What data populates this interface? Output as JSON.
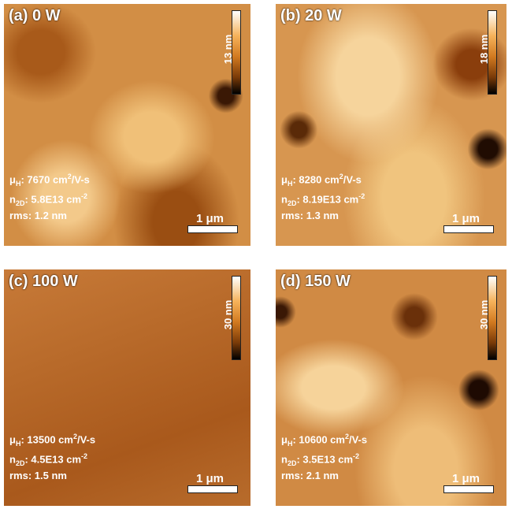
{
  "panels": [
    {
      "label": "(a) 0 W",
      "colorbar": "13 nm",
      "scalebar": "1 μm",
      "mobility": [
        "μ",
        "H",
        ": 7670 cm",
        "2",
        "/V-s"
      ],
      "density": [
        "n",
        "2D",
        ": 5.8E13 cm",
        "-2"
      ],
      "rms": "rms: 1.2 nm"
    },
    {
      "label": "(b) 20 W",
      "colorbar": "18 nm",
      "scalebar": "1 μm",
      "mobility": [
        "μ",
        "H",
        ": 8280 cm",
        "2",
        "/V-s"
      ],
      "density": [
        "n",
        "2D",
        ": 8.19E13 cm",
        "-2"
      ],
      "rms": "rms: 1.3 nm"
    },
    {
      "label": "(c) 100 W",
      "colorbar": "30 nm",
      "scalebar": "1 μm",
      "mobility": [
        "μ",
        "H",
        ": 13500 cm",
        "2",
        "/V-s"
      ],
      "density": [
        "n",
        "2D",
        ": 4.5E13 cm",
        "-2"
      ],
      "rms": "rms: 1.5 nm"
    },
    {
      "label": "(d) 150 W",
      "colorbar": "30 nm",
      "scalebar": "1 μm",
      "mobility": [
        "μ",
        "H",
        ": 10600 cm",
        "2",
        "/V-s"
      ],
      "density": [
        "n",
        "2D",
        ": 3.5E13 cm",
        "-2"
      ],
      "rms": "rms: 2.1 nm"
    }
  ]
}
